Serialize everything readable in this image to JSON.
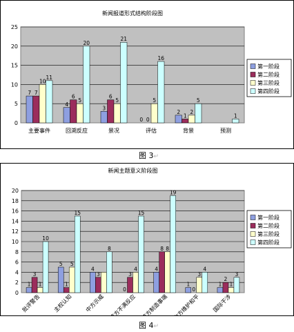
{
  "chart_data": [
    {
      "type": "bar",
      "title": "新闻报道形式结构阶段图",
      "categories": [
        "主要事件",
        "回溯反应",
        "景况",
        "评估",
        "背景",
        "预测"
      ],
      "series": [
        {
          "name": "第一阶段",
          "color": "#8e9fe0",
          "values": [
            7,
            4,
            3,
            0,
            2,
            0
          ]
        },
        {
          "name": "第二阶段",
          "color": "#9b2d5c",
          "values": [
            7,
            6,
            6,
            0,
            1,
            0
          ]
        },
        {
          "name": "第三阶段",
          "color": "#ffffcc",
          "values": [
            10,
            5,
            5,
            5,
            2,
            0
          ]
        },
        {
          "name": "第四阶段",
          "color": "#ccffff",
          "values": [
            11,
            20,
            21,
            16,
            5,
            1
          ]
        }
      ],
      "data_labels": [
        [
          "7",
          "7",
          "10",
          "11"
        ],
        [
          "4",
          "6",
          "5",
          "20"
        ],
        [
          "3",
          "6",
          "5",
          "21"
        ],
        [
          "0",
          "0",
          "5",
          "16"
        ],
        [
          "2",
          "1",
          "2",
          "5"
        ],
        [
          "",
          "",
          "",
          "1"
        ]
      ],
      "yticks": [
        0,
        5,
        10,
        15,
        20,
        25
      ],
      "ylim": [
        0,
        25
      ],
      "grid": true,
      "legend": "right",
      "caption": "图 3"
    },
    {
      "type": "bar",
      "title": "新闻主题意义阶段图",
      "categories": [
        "批评警告",
        "主权认知",
        "中方示威",
        "苛方不满反应",
        "苛方制造事端",
        "中方维护和平",
        "国际干涉"
      ],
      "series": [
        {
          "name": "第一阶段",
          "color": "#8e9fe0",
          "values": [
            1,
            5,
            4,
            0,
            4,
            1,
            1
          ]
        },
        {
          "name": "第二阶段",
          "color": "#9b2d5c",
          "values": [
            3,
            1,
            3,
            3,
            8,
            0,
            2
          ]
        },
        {
          "name": "第三阶段",
          "color": "#ffffcc",
          "values": [
            1,
            5,
            4,
            4,
            8,
            3,
            1
          ]
        },
        {
          "name": "第四阶段",
          "color": "#ccffff",
          "values": [
            10,
            15,
            8,
            15,
            19,
            4,
            3
          ]
        }
      ],
      "data_labels": [
        [
          "1",
          "3",
          "1",
          "10"
        ],
        [
          "5",
          "1",
          "5",
          "15"
        ],
        [
          "4",
          "3",
          "",
          "8"
        ],
        [
          "0",
          "3",
          "4",
          "15"
        ],
        [
          "4",
          "8",
          "8",
          "19"
        ],
        [
          "1",
          "0",
          "3",
          "4"
        ],
        [
          "1",
          "2",
          "1",
          "3"
        ]
      ],
      "yticks": [
        0,
        2,
        4,
        6,
        8,
        10,
        12,
        14,
        16,
        18,
        20
      ],
      "ylim": [
        0,
        20
      ],
      "grid": true,
      "legend": "right",
      "caption": "图 4"
    }
  ],
  "colors": {
    "plot_background": "#c0c0c0",
    "frame_background": "#ffffff",
    "gridline": "#000000"
  },
  "return_glyph": "↵"
}
